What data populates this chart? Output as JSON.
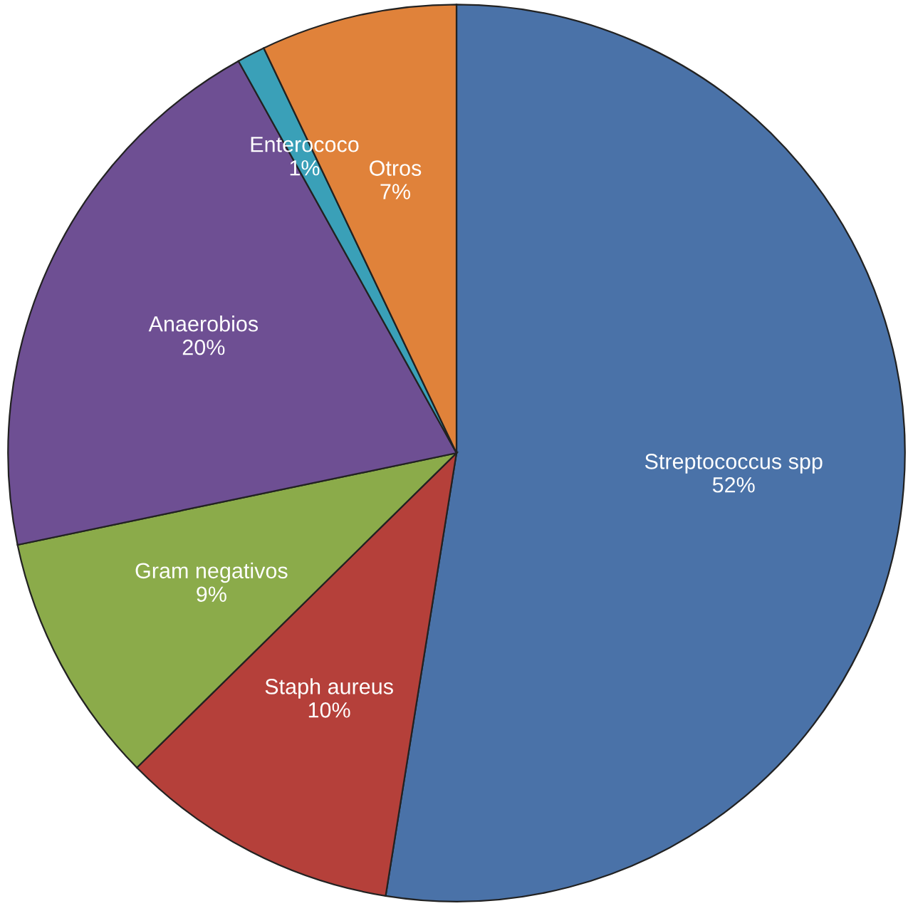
{
  "chart_data": {
    "type": "pie",
    "categories": [
      "Streptococcus spp",
      "Staph aureus",
      "Gram negativos",
      "Anaerobios",
      "Enterococo",
      "Otros"
    ],
    "values": [
      52,
      10,
      9,
      20,
      1,
      7
    ],
    "value_labels": [
      "52%",
      "10%",
      "9%",
      "20%",
      "1%",
      "7%"
    ],
    "colors": [
      "#4a72a8",
      "#b5403a",
      "#8bab4a",
      "#6e4f93",
      "#3aa0b8",
      "#e0823a"
    ]
  }
}
